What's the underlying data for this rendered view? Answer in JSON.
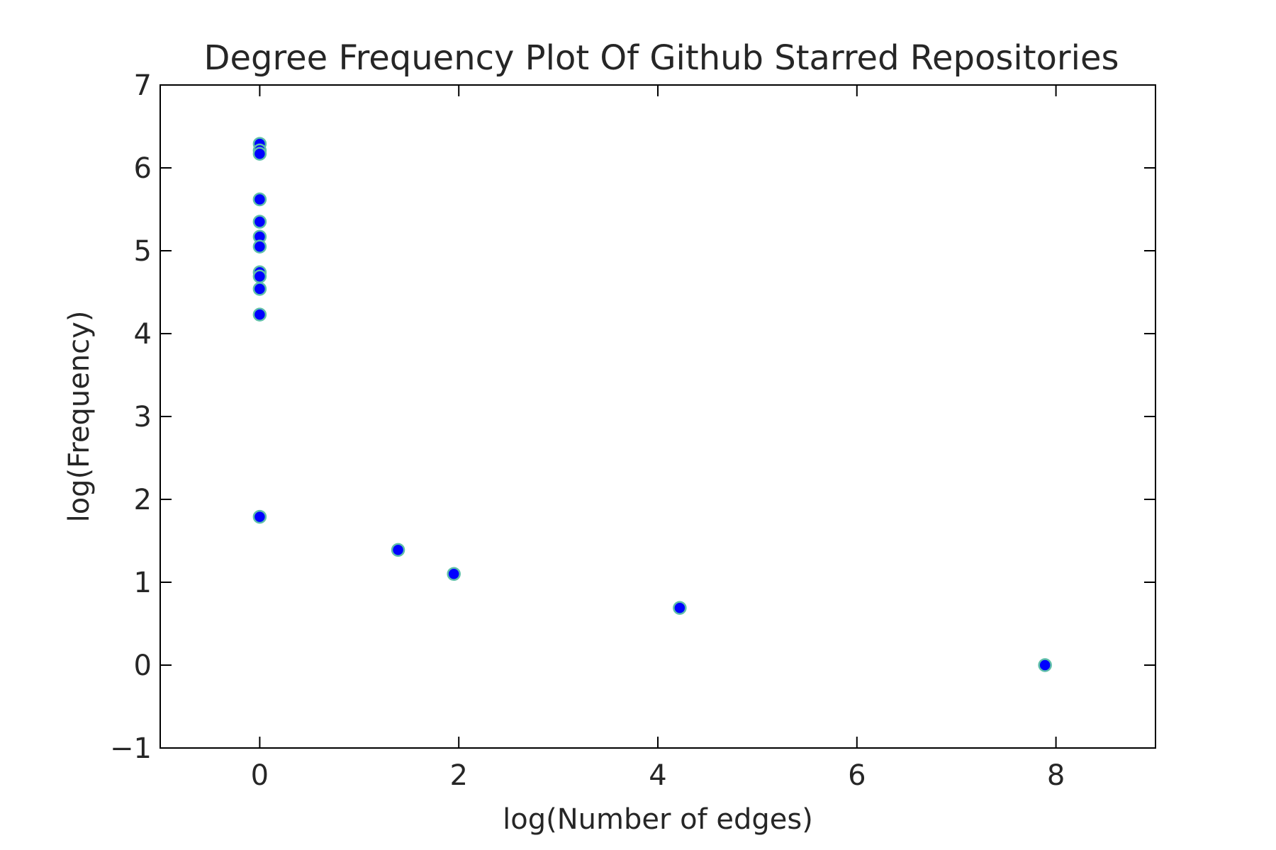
{
  "chart_data": {
    "type": "scatter",
    "title": "Degree Frequency Plot Of Github Starred Repositories",
    "xlabel": "log(Number of edges)",
    "ylabel": "log(Frequency)",
    "xlim": [
      -1,
      9
    ],
    "ylim": [
      -1,
      7
    ],
    "xticks": [
      0,
      2,
      4,
      6,
      8
    ],
    "yticks": [
      -1,
      0,
      1,
      2,
      3,
      4,
      5,
      6,
      7
    ],
    "xtick_labels": [
      "0",
      "2",
      "4",
      "6",
      "8"
    ],
    "ytick_labels": [
      "−1",
      "0",
      "1",
      "2",
      "3",
      "4",
      "5",
      "6",
      "7"
    ],
    "grid": false,
    "legend": null,
    "marker_color": "#0000ff",
    "marker_edge_color": "#5fbfaa",
    "points": [
      {
        "x": 0,
        "y": 6.29
      },
      {
        "x": 0,
        "y": 6.21
      },
      {
        "x": 0,
        "y": 6.17
      },
      {
        "x": 0,
        "y": 5.62
      },
      {
        "x": 0,
        "y": 5.35
      },
      {
        "x": 0,
        "y": 5.17
      },
      {
        "x": 0,
        "y": 5.05
      },
      {
        "x": 0,
        "y": 4.74
      },
      {
        "x": 0,
        "y": 4.69
      },
      {
        "x": 0,
        "y": 4.54
      },
      {
        "x": 0,
        "y": 4.23
      },
      {
        "x": 0,
        "y": 1.79
      },
      {
        "x": 1.39,
        "y": 1.39
      },
      {
        "x": 1.95,
        "y": 1.1
      },
      {
        "x": 4.22,
        "y": 0.69
      },
      {
        "x": 7.89,
        "y": 0.0
      }
    ]
  }
}
